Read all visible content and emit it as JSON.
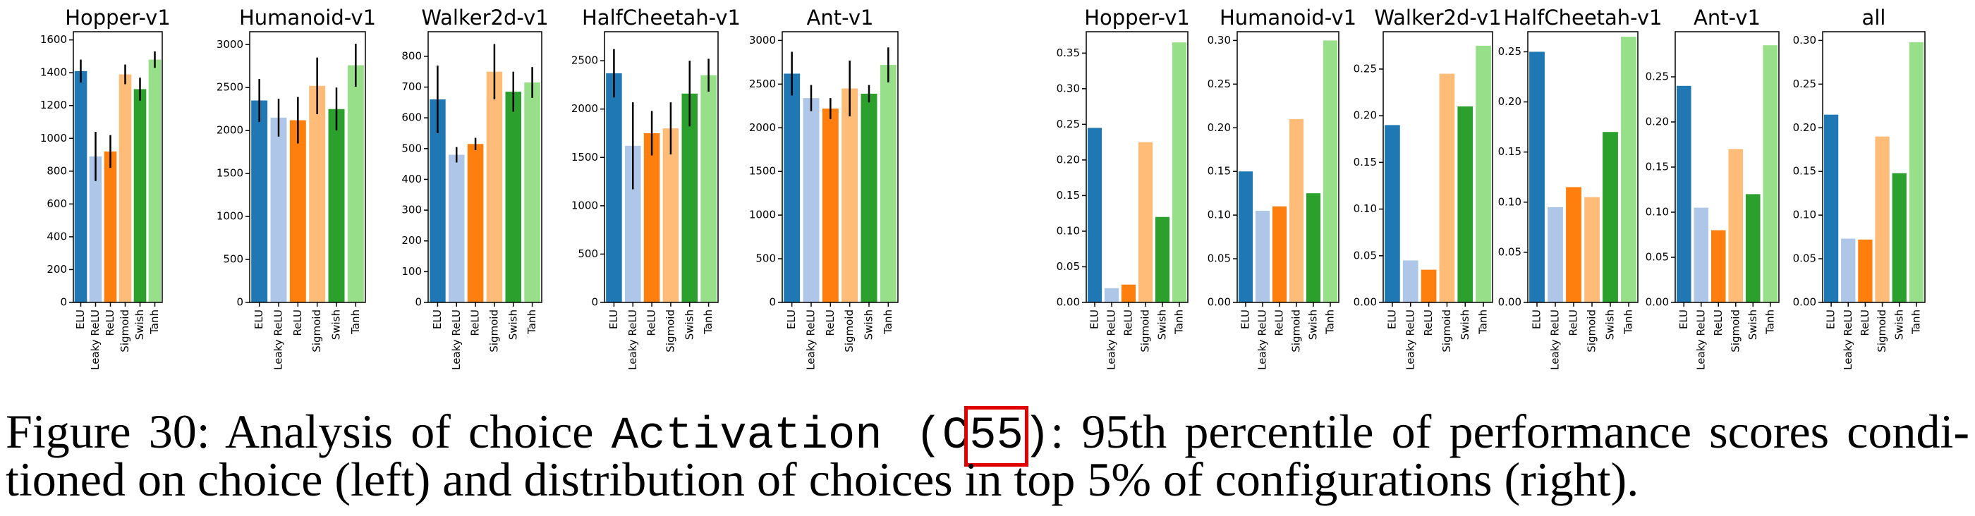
{
  "chart_data": [
    {
      "type": "bar",
      "title": "Hopper-v1",
      "categories": [
        "ELU",
        "Leaky ReLU",
        "ReLU",
        "Sigmoid",
        "Swish",
        "Tanh"
      ],
      "colors": [
        "#1f77b4",
        "#aec7e8",
        "#ff7f0e",
        "#ffbb78",
        "#2ca02c",
        "#98df8a"
      ],
      "values": [
        1410,
        890,
        920,
        1390,
        1300,
        1480
      ],
      "errors": [
        70,
        150,
        100,
        60,
        70,
        50
      ],
      "ylim": [
        0,
        1650
      ],
      "yticks": [
        0,
        200,
        400,
        600,
        800,
        1000,
        1200,
        1400,
        1600
      ]
    },
    {
      "type": "bar",
      "title": "Humanoid-v1",
      "categories": [
        "ELU",
        "Leaky ReLU",
        "ReLU",
        "Sigmoid",
        "Swish",
        "Tanh"
      ],
      "colors": [
        "#1f77b4",
        "#aec7e8",
        "#ff7f0e",
        "#ffbb78",
        "#2ca02c",
        "#98df8a"
      ],
      "values": [
        2350,
        2150,
        2120,
        2520,
        2250,
        2760
      ],
      "errors": [
        250,
        220,
        270,
        330,
        250,
        250
      ],
      "ylim": [
        0,
        3150
      ],
      "yticks": [
        0,
        500,
        1000,
        1500,
        2000,
        2500,
        3000
      ]
    },
    {
      "type": "bar",
      "title": "Walker2d-v1",
      "categories": [
        "ELU",
        "Leaky ReLU",
        "ReLU",
        "Sigmoid",
        "Swish",
        "Tanh"
      ],
      "colors": [
        "#1f77b4",
        "#aec7e8",
        "#ff7f0e",
        "#ffbb78",
        "#2ca02c",
        "#98df8a"
      ],
      "values": [
        660,
        480,
        515,
        750,
        685,
        715
      ],
      "errors": [
        110,
        25,
        20,
        90,
        65,
        50
      ],
      "ylim": [
        0,
        880
      ],
      "yticks": [
        0,
        100,
        200,
        300,
        400,
        500,
        600,
        700,
        800
      ]
    },
    {
      "type": "bar",
      "title": "HalfCheetah-v1",
      "categories": [
        "ELU",
        "Leaky ReLU",
        "ReLU",
        "Sigmoid",
        "Swish",
        "Tanh"
      ],
      "colors": [
        "#1f77b4",
        "#aec7e8",
        "#ff7f0e",
        "#ffbb78",
        "#2ca02c",
        "#98df8a"
      ],
      "values": [
        2370,
        1620,
        1750,
        1800,
        2160,
        2350
      ],
      "errors": [
        250,
        450,
        230,
        270,
        340,
        170
      ],
      "ylim": [
        0,
        2800
      ],
      "yticks": [
        0,
        500,
        1000,
        1500,
        2000,
        2500
      ]
    },
    {
      "type": "bar",
      "title": "Ant-v1",
      "categories": [
        "ELU",
        "Leaky ReLU",
        "ReLU",
        "Sigmoid",
        "Swish",
        "Tanh"
      ],
      "colors": [
        "#1f77b4",
        "#aec7e8",
        "#ff7f0e",
        "#ffbb78",
        "#2ca02c",
        "#98df8a"
      ],
      "values": [
        2620,
        2340,
        2220,
        2450,
        2390,
        2720
      ],
      "errors": [
        250,
        150,
        120,
        320,
        100,
        200
      ],
      "ylim": [
        0,
        3100
      ],
      "yticks": [
        0,
        500,
        1000,
        1500,
        2000,
        2500,
        3000
      ]
    },
    {
      "type": "bar",
      "title": "Hopper-v1",
      "categories": [
        "ELU",
        "Leaky ReLU",
        "ReLU",
        "Sigmoid",
        "Swish",
        "Tanh"
      ],
      "colors": [
        "#1f77b4",
        "#aec7e8",
        "#ff7f0e",
        "#ffbb78",
        "#2ca02c",
        "#98df8a"
      ],
      "values": [
        0.245,
        0.02,
        0.025,
        0.225,
        0.12,
        0.365
      ],
      "ylim": [
        0,
        0.38
      ],
      "yticks": [
        {
          "value": 0,
          "label": "0.00"
        },
        {
          "value": 0.05,
          "label": "0.05"
        },
        {
          "value": 0.1,
          "label": "0.10"
        },
        {
          "value": 0.15,
          "label": "0.15"
        },
        {
          "value": 0.2,
          "label": "0.20"
        },
        {
          "value": 0.25,
          "label": "0.25"
        },
        {
          "value": 0.3,
          "label": "0.30"
        },
        {
          "value": 0.35,
          "label": "0.35"
        }
      ]
    },
    {
      "type": "bar",
      "title": "Humanoid-v1",
      "categories": [
        "ELU",
        "Leaky ReLU",
        "ReLU",
        "Sigmoid",
        "Swish",
        "Tanh"
      ],
      "colors": [
        "#1f77b4",
        "#aec7e8",
        "#ff7f0e",
        "#ffbb78",
        "#2ca02c",
        "#98df8a"
      ],
      "values": [
        0.15,
        0.105,
        0.11,
        0.21,
        0.125,
        0.3
      ],
      "ylim": [
        0,
        0.31
      ],
      "yticks": [
        {
          "value": 0,
          "label": "0.00"
        },
        {
          "value": 0.05,
          "label": "0.05"
        },
        {
          "value": 0.1,
          "label": "0.10"
        },
        {
          "value": 0.15,
          "label": "0.15"
        },
        {
          "value": 0.2,
          "label": "0.20"
        },
        {
          "value": 0.25,
          "label": "0.25"
        },
        {
          "value": 0.3,
          "label": "0.30"
        }
      ]
    },
    {
      "type": "bar",
      "title": "Walker2d-v1",
      "categories": [
        "ELU",
        "Leaky ReLU",
        "ReLU",
        "Sigmoid",
        "Swish",
        "Tanh"
      ],
      "colors": [
        "#1f77b4",
        "#aec7e8",
        "#ff7f0e",
        "#ffbb78",
        "#2ca02c",
        "#98df8a"
      ],
      "values": [
        0.19,
        0.045,
        0.035,
        0.245,
        0.21,
        0.275
      ],
      "ylim": [
        0,
        0.29
      ],
      "yticks": [
        {
          "value": 0,
          "label": "0.00"
        },
        {
          "value": 0.05,
          "label": "0.05"
        },
        {
          "value": 0.1,
          "label": "0.10"
        },
        {
          "value": 0.15,
          "label": "0.15"
        },
        {
          "value": 0.2,
          "label": "0.20"
        },
        {
          "value": 0.25,
          "label": "0.25"
        }
      ]
    },
    {
      "type": "bar",
      "title": "HalfCheetah-v1",
      "categories": [
        "ELU",
        "Leaky ReLU",
        "ReLU",
        "Sigmoid",
        "Swish",
        "Tanh"
      ],
      "colors": [
        "#1f77b4",
        "#aec7e8",
        "#ff7f0e",
        "#ffbb78",
        "#2ca02c",
        "#98df8a"
      ],
      "values": [
        0.25,
        0.095,
        0.115,
        0.105,
        0.17,
        0.265
      ],
      "ylim": [
        0,
        0.27
      ],
      "yticks": [
        {
          "value": 0,
          "label": "0.00"
        },
        {
          "value": 0.05,
          "label": "0.05"
        },
        {
          "value": 0.1,
          "label": "0.10"
        },
        {
          "value": 0.15,
          "label": "0.15"
        },
        {
          "value": 0.2,
          "label": "0.20"
        },
        {
          "value": 0.25,
          "label": "0.25"
        }
      ]
    },
    {
      "type": "bar",
      "title": "Ant-v1",
      "categories": [
        "ELU",
        "Leaky ReLU",
        "ReLU",
        "Sigmoid",
        "Swish",
        "Tanh"
      ],
      "colors": [
        "#1f77b4",
        "#aec7e8",
        "#ff7f0e",
        "#ffbb78",
        "#2ca02c",
        "#98df8a"
      ],
      "values": [
        0.24,
        0.105,
        0.08,
        0.17,
        0.12,
        0.285
      ],
      "ylim": [
        0,
        0.3
      ],
      "yticks": [
        {
          "value": 0,
          "label": "0.00"
        },
        {
          "value": 0.05,
          "label": "0.05"
        },
        {
          "value": 0.1,
          "label": "0.10"
        },
        {
          "value": 0.15,
          "label": "0.15"
        },
        {
          "value": 0.2,
          "label": "0.20"
        },
        {
          "value": 0.25,
          "label": "0.25"
        }
      ]
    },
    {
      "type": "bar",
      "title": "all",
      "categories": [
        "ELU",
        "Leaky ReLU",
        "ReLU",
        "Sigmoid",
        "Swish",
        "Tanh"
      ],
      "colors": [
        "#1f77b4",
        "#aec7e8",
        "#ff7f0e",
        "#ffbb78",
        "#2ca02c",
        "#98df8a"
      ],
      "values": [
        0.215,
        0.073,
        0.072,
        0.19,
        0.148,
        0.298
      ],
      "ylim": [
        0,
        0.31
      ],
      "yticks": [
        {
          "value": 0,
          "label": "0.00"
        },
        {
          "value": 0.05,
          "label": "0.05"
        },
        {
          "value": 0.1,
          "label": "0.10"
        },
        {
          "value": 0.15,
          "label": "0.15"
        },
        {
          "value": 0.2,
          "label": "0.20"
        },
        {
          "value": 0.25,
          "label": "0.25"
        },
        {
          "value": 0.3,
          "label": "0.30"
        }
      ]
    }
  ],
  "caption": {
    "lead": "Figure 30: Analysis of choice",
    "code_start": "Activation (C",
    "highlight": "55",
    "code_end": ")",
    "line1_rest": ": 95th percentile of performance scores condi-",
    "line2": "tioned on choice (left) and distribution of choices in top 5% of configurations (right)."
  }
}
